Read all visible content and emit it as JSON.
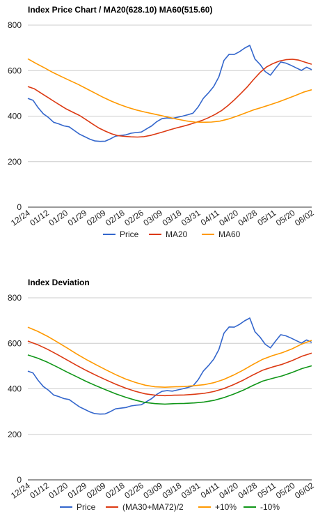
{
  "chart_data": [
    {
      "type": "line",
      "title": "Index Price Chart / MA20(628.10) MA60(515.60)",
      "xlabel": "",
      "ylabel": "",
      "ylim": [
        0,
        800
      ],
      "yticks": [
        0,
        200,
        400,
        600,
        800
      ],
      "xticks": [
        "12/24",
        "01/12",
        "01/20",
        "01/29",
        "02/09",
        "02/18",
        "02/26",
        "03/09",
        "03/18",
        "03/31",
        "04/11",
        "04/20",
        "04/28",
        "05/11",
        "05/20",
        "06/02"
      ],
      "grid": "horizontal",
      "legend": "bottom",
      "series": [
        {
          "name": "Price",
          "color": "#3366cc",
          "values": [
            478,
            470,
            437,
            410,
            394,
            373,
            366,
            357,
            353,
            337,
            321,
            310,
            299,
            291,
            289,
            290,
            300,
            312,
            315,
            318,
            325,
            328,
            330,
            344,
            357,
            376,
            389,
            392,
            390,
            395,
            400,
            406,
            413,
            440,
            478,
            502,
            530,
            572,
            645,
            672,
            671,
            683,
            699,
            711,
            651,
            627,
            596,
            580,
            610,
            638,
            633,
            623,
            612,
            601,
            615,
            604
          ]
        },
        {
          "name": "MA20",
          "color": "#dc3912",
          "values": [
            530,
            520,
            502,
            484,
            466,
            448,
            431,
            417,
            403,
            385,
            366,
            348,
            334,
            322,
            314,
            311,
            309,
            308,
            310,
            315,
            323,
            331,
            340,
            348,
            355,
            363,
            372,
            381,
            393,
            407,
            424,
            446,
            471,
            499,
            528,
            561,
            592,
            616,
            631,
            642,
            648,
            650,
            646,
            637,
            628
          ]
        },
        {
          "name": "MA60",
          "color": "#ff9900",
          "values": [
            652,
            631,
            612,
            592,
            574,
            557,
            540,
            521,
            502,
            483,
            466,
            451,
            438,
            427,
            418,
            410,
            402,
            394,
            386,
            379,
            374,
            373,
            374,
            378,
            387,
            399,
            413,
            427,
            438,
            450,
            462,
            476,
            490,
            505,
            516
          ]
        }
      ]
    },
    {
      "type": "line",
      "title": "Index Deviation",
      "xlabel": "",
      "ylabel": "",
      "ylim": [
        0,
        800
      ],
      "yticks": [
        0,
        200,
        400,
        600,
        800
      ],
      "xticks": [
        "12/24",
        "01/12",
        "01/20",
        "01/29",
        "02/09",
        "02/18",
        "02/26",
        "03/09",
        "03/18",
        "03/31",
        "04/11",
        "04/20",
        "04/28",
        "05/11",
        "05/20",
        "06/02"
      ],
      "grid": "horizontal",
      "legend": "bottom",
      "series": [
        {
          "name": "Price",
          "color": "#3366cc",
          "values": [
            478,
            470,
            437,
            410,
            394,
            373,
            366,
            357,
            353,
            337,
            321,
            310,
            299,
            291,
            289,
            290,
            300,
            312,
            315,
            318,
            325,
            328,
            330,
            344,
            357,
            376,
            389,
            392,
            390,
            395,
            400,
            406,
            413,
            440,
            478,
            502,
            530,
            572,
            645,
            672,
            671,
            683,
            699,
            711,
            651,
            627,
            596,
            580,
            610,
            638,
            633,
            623,
            612,
            601,
            615,
            604
          ]
        },
        {
          "name": "(MA30+MA72)/2",
          "color": "#dc3912",
          "values": [
            610,
            594,
            574,
            551,
            527,
            503,
            480,
            459,
            439,
            420,
            403,
            389,
            378,
            372,
            370,
            372,
            373,
            376,
            380,
            388,
            401,
            418,
            438,
            461,
            482,
            496,
            508,
            524,
            543,
            557
          ]
        },
        {
          "name": "+10%",
          "color": "#ff9900",
          "values": [
            671,
            653,
            631,
            606,
            580,
            553,
            528,
            505,
            483,
            462,
            443,
            428,
            416,
            409,
            407,
            409,
            410,
            414,
            418,
            427,
            441,
            460,
            482,
            507,
            530,
            546,
            559,
            576,
            597,
            613
          ]
        },
        {
          "name": "-10%",
          "color": "#109618",
          "values": [
            549,
            535,
            517,
            496,
            474,
            453,
            432,
            413,
            395,
            378,
            363,
            350,
            340,
            335,
            333,
            335,
            336,
            338,
            342,
            349,
            361,
            376,
            394,
            415,
            434,
            446,
            457,
            472,
            489,
            501
          ]
        }
      ]
    }
  ]
}
